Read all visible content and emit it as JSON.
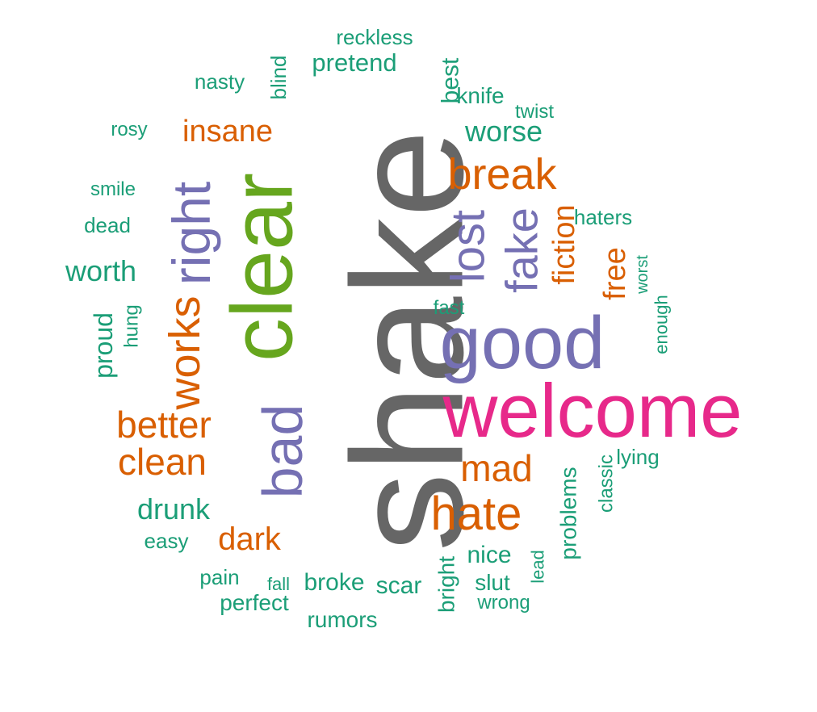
{
  "colors": {
    "gray": "#666666",
    "pink": "#e7298a",
    "purple": "#7570b3",
    "green": "#66a61e",
    "orange": "#d95f02",
    "teal": "#1b9e77"
  },
  "words": [
    {
      "text": "shake",
      "color": "gray"
    },
    {
      "text": "welcome",
      "color": "pink"
    },
    {
      "text": "clear",
      "color": "green"
    },
    {
      "text": "good",
      "color": "purple"
    },
    {
      "text": "bad",
      "color": "purple"
    },
    {
      "text": "right",
      "color": "purple"
    },
    {
      "text": "works",
      "color": "orange"
    },
    {
      "text": "break",
      "color": "orange"
    },
    {
      "text": "hate",
      "color": "orange"
    },
    {
      "text": "lost",
      "color": "purple"
    },
    {
      "text": "fake",
      "color": "purple"
    },
    {
      "text": "mad",
      "color": "orange"
    },
    {
      "text": "better",
      "color": "orange"
    },
    {
      "text": "clean",
      "color": "orange"
    },
    {
      "text": "dark",
      "color": "orange"
    },
    {
      "text": "insane",
      "color": "orange"
    },
    {
      "text": "fiction",
      "color": "orange"
    },
    {
      "text": "free",
      "color": "orange"
    },
    {
      "text": "worse",
      "color": "teal"
    },
    {
      "text": "worth",
      "color": "teal"
    },
    {
      "text": "drunk",
      "color": "teal"
    },
    {
      "text": "pretend",
      "color": "teal"
    },
    {
      "text": "reckless",
      "color": "teal"
    },
    {
      "text": "nasty",
      "color": "teal"
    },
    {
      "text": "blind",
      "color": "teal"
    },
    {
      "text": "best",
      "color": "teal"
    },
    {
      "text": "knife",
      "color": "teal"
    },
    {
      "text": "twist",
      "color": "teal"
    },
    {
      "text": "rosy",
      "color": "teal"
    },
    {
      "text": "smile",
      "color": "teal"
    },
    {
      "text": "dead",
      "color": "teal"
    },
    {
      "text": "haters",
      "color": "teal"
    },
    {
      "text": "worst",
      "color": "teal"
    },
    {
      "text": "enough",
      "color": "teal"
    },
    {
      "text": "fast",
      "color": "teal"
    },
    {
      "text": "proud",
      "color": "teal"
    },
    {
      "text": "hung",
      "color": "teal"
    },
    {
      "text": "easy",
      "color": "teal"
    },
    {
      "text": "pain",
      "color": "teal"
    },
    {
      "text": "fall",
      "color": "teal"
    },
    {
      "text": "perfect",
      "color": "teal"
    },
    {
      "text": "broke",
      "color": "teal"
    },
    {
      "text": "scar",
      "color": "teal"
    },
    {
      "text": "rumors",
      "color": "teal"
    },
    {
      "text": "bright",
      "color": "teal"
    },
    {
      "text": "nice",
      "color": "teal"
    },
    {
      "text": "slut",
      "color": "teal"
    },
    {
      "text": "wrong",
      "color": "teal"
    },
    {
      "text": "lead",
      "color": "teal"
    },
    {
      "text": "problems",
      "color": "teal"
    },
    {
      "text": "classic",
      "color": "teal"
    },
    {
      "text": "lying",
      "color": "teal"
    }
  ]
}
